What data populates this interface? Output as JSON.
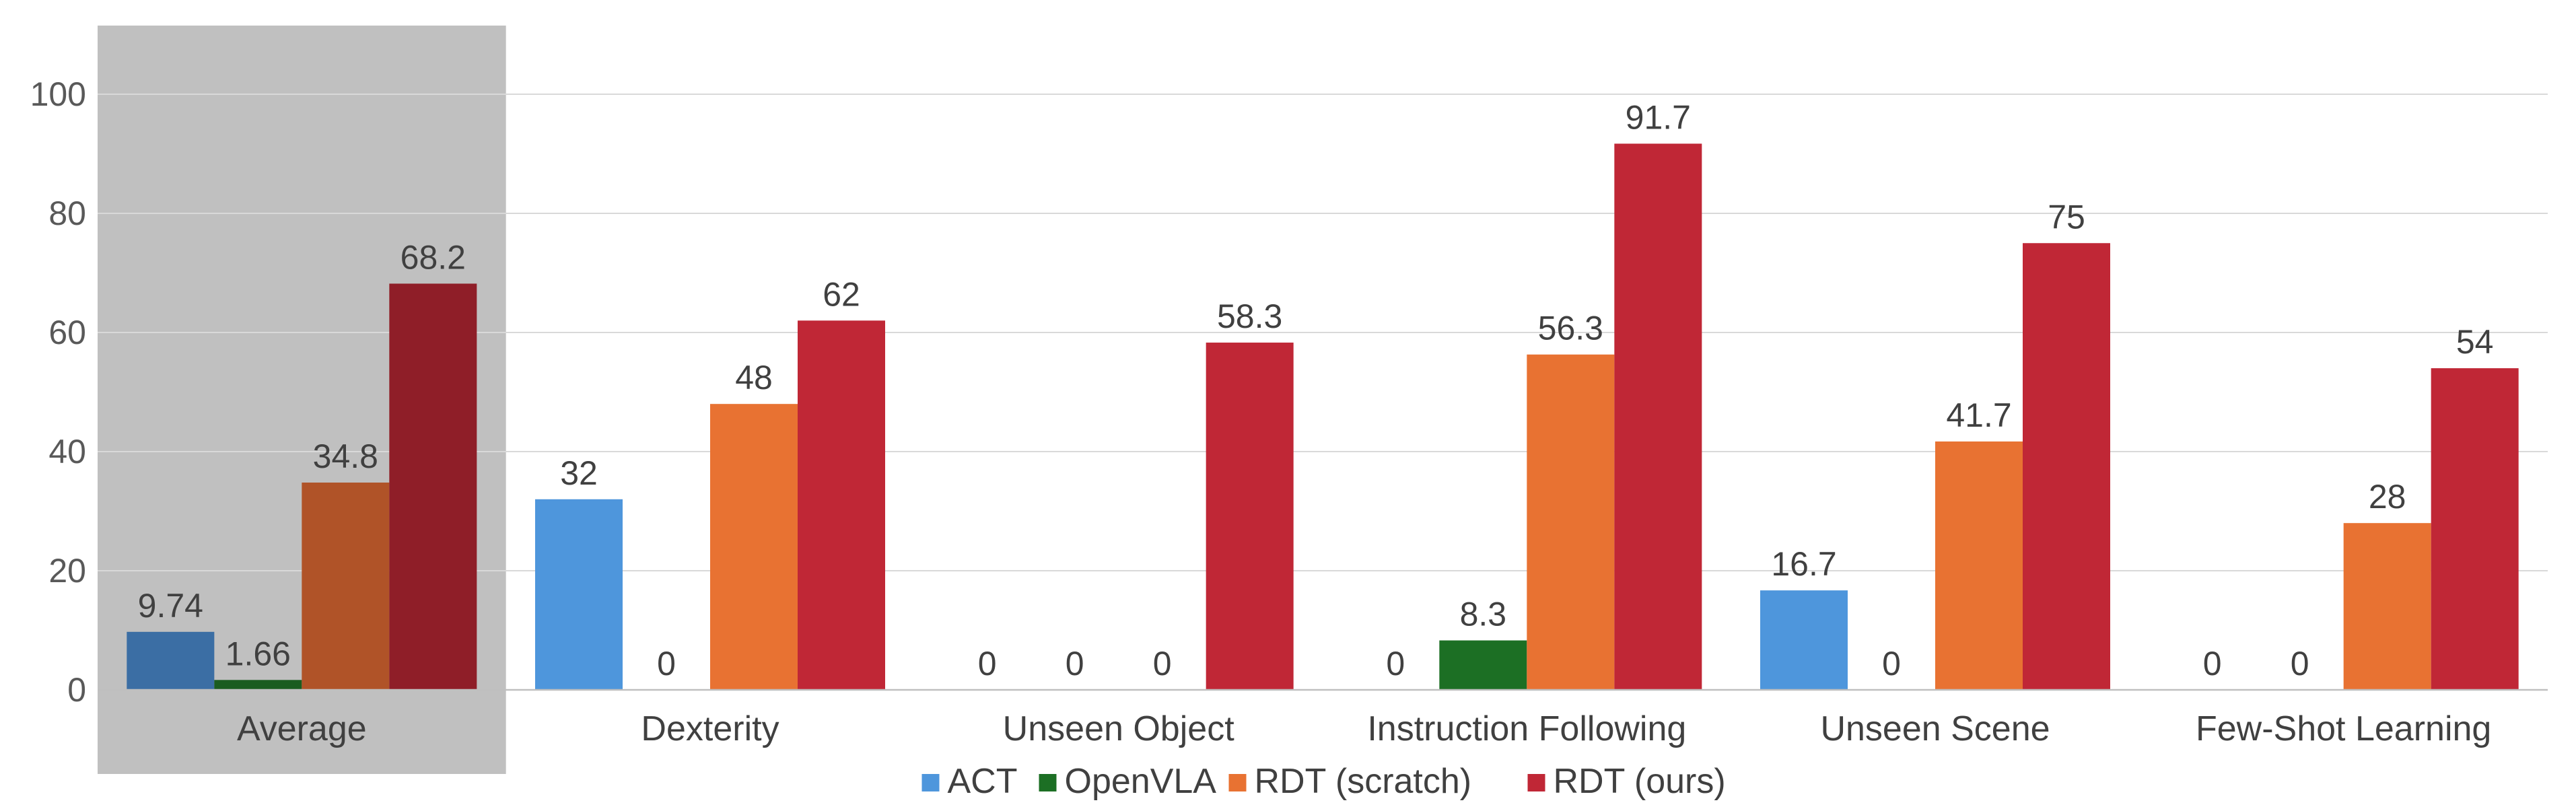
{
  "chart_data": {
    "type": "bar",
    "categories": [
      "Average",
      "Dexterity",
      "Unseen Object",
      "Instruction Following",
      "Unseen Scene",
      "Few-Shot Learning"
    ],
    "series": [
      {
        "name": "ACT",
        "values": [
          9.74,
          32,
          0,
          0,
          16.7,
          0
        ],
        "labels": [
          "9.74",
          "32",
          "0",
          "0",
          "16.7",
          "0"
        ]
      },
      {
        "name": "OpenVLA",
        "values": [
          1.66,
          0,
          0,
          8.3,
          0,
          0
        ],
        "labels": [
          "1.66",
          "0",
          "0",
          "8.3",
          "0",
          "0"
        ]
      },
      {
        "name": "RDT (scratch)",
        "values": [
          34.8,
          48,
          0,
          56.3,
          41.7,
          28
        ],
        "labels": [
          "34.8",
          "48",
          "0",
          "56.3",
          "41.7",
          "28"
        ]
      },
      {
        "name": "RDT (ours)",
        "values": [
          68.2,
          62,
          58.3,
          91.7,
          75,
          54
        ],
        "labels": [
          "68.2",
          "62",
          "58.3",
          "91.7",
          "75",
          "54"
        ]
      }
    ],
    "ylim": [
      0,
      110
    ],
    "yticks": [
      0,
      20,
      40,
      60,
      80,
      100
    ],
    "grid": true,
    "legend_position": "bottom",
    "highlighted_category": "Average",
    "colors": {
      "series": [
        "#4e96dc",
        "#1c6f24",
        "#e87232",
        "#c02736"
      ],
      "highlight_series": [
        "#3b6ea4",
        "#1a5c1f",
        "#b05328",
        "#8f1e28"
      ],
      "highlight_background": "#c0c0c0"
    }
  }
}
